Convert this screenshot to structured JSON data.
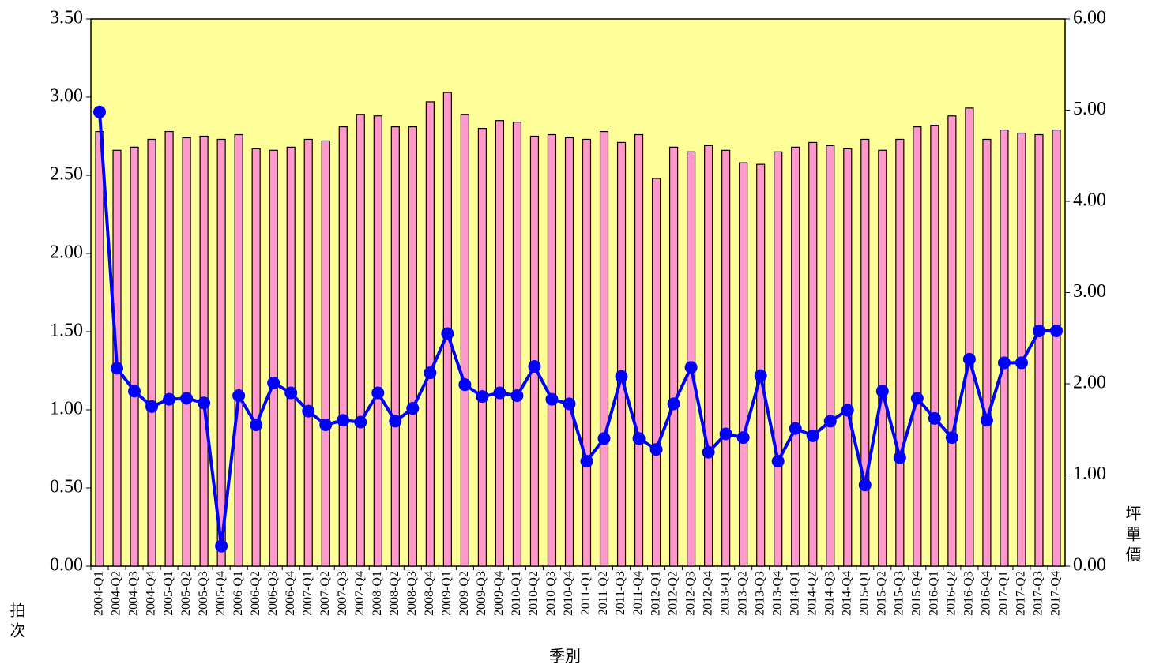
{
  "chart_data": {
    "type": "bar",
    "x_label": "季別",
    "y_label": "拍次",
    "y2_label": "坪單價",
    "categories": [
      "2004-Q1",
      "2004-Q2",
      "2004-Q3",
      "2004-Q4",
      "2005-Q1",
      "2005-Q2",
      "2005-Q3",
      "2005-Q4",
      "2006-Q1",
      "2006-Q2",
      "2006-Q3",
      "2006-Q4",
      "2007-Q1",
      "2007-Q2",
      "2007-Q3",
      "2007-Q4",
      "2008-Q1",
      "2008-Q2",
      "2008-Q3",
      "2008-Q4",
      "2009-Q1",
      "2009-Q2",
      "2009-Q3",
      "2009-Q4",
      "2010-Q1",
      "2010-Q2",
      "2010-Q3",
      "2010-Q4",
      "2011-Q1",
      "2011-Q2",
      "2011-Q3",
      "2011-Q4",
      "2012-Q1",
      "2012-Q2",
      "2012-Q3",
      "2012-Q4",
      "2013-Q1",
      "2013-Q2",
      "2013-Q3",
      "2013-Q4",
      "2014-Q1",
      "2014-Q2",
      "2014-Q3",
      "2014-Q4",
      "2015-Q1",
      "2015-Q2",
      "2015-Q3",
      "2015-Q4",
      "2016-Q1",
      "2016-Q2",
      "2016-Q3",
      "2016-Q4",
      "2017-Q1",
      "2017-Q2",
      "2017-Q3",
      "2017-Q4"
    ],
    "series": [
      {
        "type": "bar",
        "axis": "y",
        "color": "#ff99cc",
        "values": [
          2.78,
          2.66,
          2.68,
          2.73,
          2.78,
          2.74,
          2.75,
          2.73,
          2.76,
          2.67,
          2.66,
          2.68,
          2.73,
          2.72,
          2.81,
          2.89,
          2.88,
          2.81,
          2.81,
          2.97,
          3.03,
          2.89,
          2.8,
          2.85,
          2.84,
          2.75,
          2.76,
          2.74,
          2.73,
          2.78,
          2.71,
          2.76,
          2.48,
          2.68,
          2.65,
          2.69,
          2.66,
          2.58,
          2.57,
          2.65,
          2.68,
          2.71,
          2.69,
          2.67,
          2.73,
          2.66,
          2.73,
          2.81,
          2.82,
          2.88,
          2.93,
          2.73,
          2.79,
          2.77,
          2.76,
          2.79
        ]
      },
      {
        "type": "line",
        "axis": "y2",
        "color": "#0000ff",
        "values": [
          4.98,
          2.17,
          1.92,
          1.75,
          1.83,
          1.84,
          1.79,
          0.22,
          1.87,
          1.55,
          2.01,
          1.9,
          1.7,
          1.55,
          1.6,
          1.58,
          1.9,
          1.59,
          1.73,
          2.12,
          2.55,
          1.99,
          1.86,
          1.9,
          1.87,
          2.19,
          1.83,
          1.78,
          1.15,
          1.4,
          2.08,
          1.4,
          1.28,
          1.78,
          2.18,
          1.25,
          1.45,
          1.41,
          2.09,
          1.15,
          1.51,
          1.43,
          1.59,
          1.71,
          0.89,
          1.92,
          1.19,
          1.84,
          1.62,
          1.41,
          2.27,
          1.6,
          2.23,
          2.23,
          2.58,
          2.58
        ]
      }
    ],
    "ylim": [
      0,
      3.5
    ],
    "yticks": [
      {
        "value": 0,
        "label": "0.00"
      },
      {
        "value": 0.5,
        "label": "0.50"
      },
      {
        "value": 1,
        "label": "1.00"
      },
      {
        "value": 1.5,
        "label": "1.50"
      },
      {
        "value": 2,
        "label": "2.00"
      },
      {
        "value": 2.5,
        "label": "2.50"
      },
      {
        "value": 3,
        "label": "3.00"
      },
      {
        "value": 3.5,
        "label": "3.50"
      }
    ],
    "y2lim": [
      0,
      6
    ],
    "y2ticks": [
      {
        "value": 0,
        "label": "0.00"
      },
      {
        "value": 1,
        "label": "1.00"
      },
      {
        "value": 2,
        "label": "2.00"
      },
      {
        "value": 3,
        "label": "3.00"
      },
      {
        "value": 4,
        "label": "4.00"
      },
      {
        "value": 5,
        "label": "5.00"
      },
      {
        "value": 6,
        "label": "6.00"
      }
    ],
    "grid": false,
    "background": "#ffff99"
  }
}
